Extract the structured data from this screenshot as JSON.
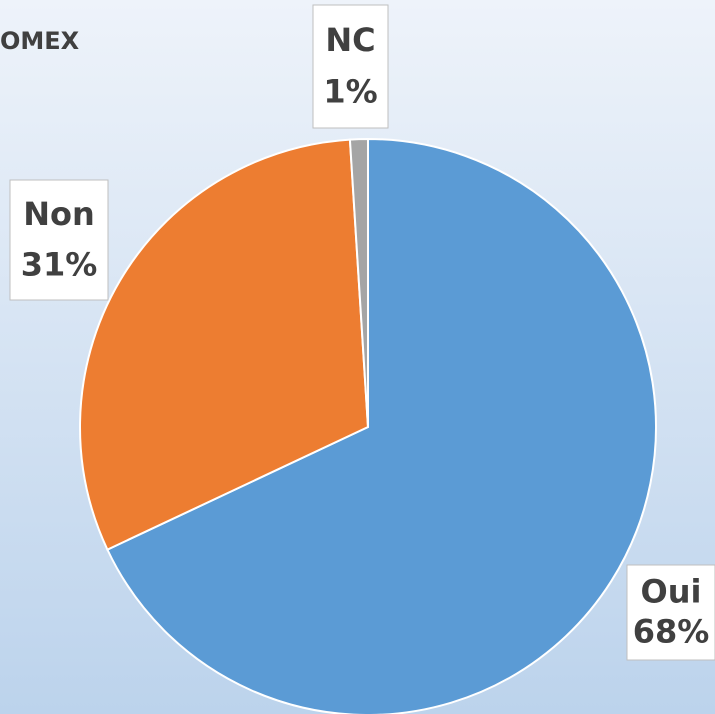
{
  "chart_data": {
    "type": "pie",
    "corner_text": "OMEX",
    "categories": [
      "Oui",
      "Non",
      "NC"
    ],
    "values": [
      68,
      31,
      1
    ],
    "value_labels": [
      "68%",
      "31%",
      "1%"
    ],
    "colors": [
      "#5b9bd5",
      "#ed7d31",
      "#a5a5a5"
    ]
  }
}
